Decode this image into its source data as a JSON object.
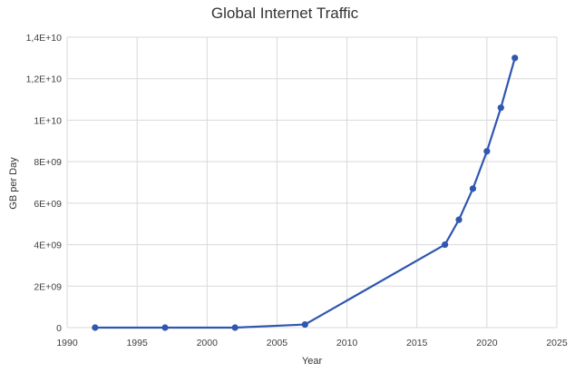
{
  "chart_data": {
    "type": "line",
    "title": "Global Internet Traffic",
    "xlabel": "Year",
    "ylabel": "GB per Day",
    "xlim": [
      1990,
      2025
    ],
    "ylim": [
      0,
      14000000000
    ],
    "x_ticks": [
      1990,
      1995,
      2000,
      2005,
      2010,
      2015,
      2020,
      2025
    ],
    "x_tick_labels": [
      "1990",
      "1995",
      "2000",
      "2005",
      "2010",
      "2015",
      "2020",
      "2025"
    ],
    "y_ticks": [
      0,
      2000000000,
      4000000000,
      6000000000,
      8000000000,
      10000000000,
      12000000000,
      14000000000
    ],
    "y_tick_labels": [
      "0",
      "2E+09",
      "4E+09",
      "6E+09",
      "8E+09",
      "1E+10",
      "1,2E+10",
      "1,4E+10"
    ],
    "grid": true,
    "legend": "none",
    "color": "#2f56b0",
    "series": [
      {
        "x": [
          1992,
          1997,
          2002,
          2007,
          2017,
          2018,
          2019,
          2020,
          2021,
          2022
        ],
        "values": [
          100,
          2400,
          100000,
          150000000,
          4000000000,
          5200000000,
          6700000000,
          8500000000,
          10600000000,
          13000000000
        ]
      }
    ]
  }
}
